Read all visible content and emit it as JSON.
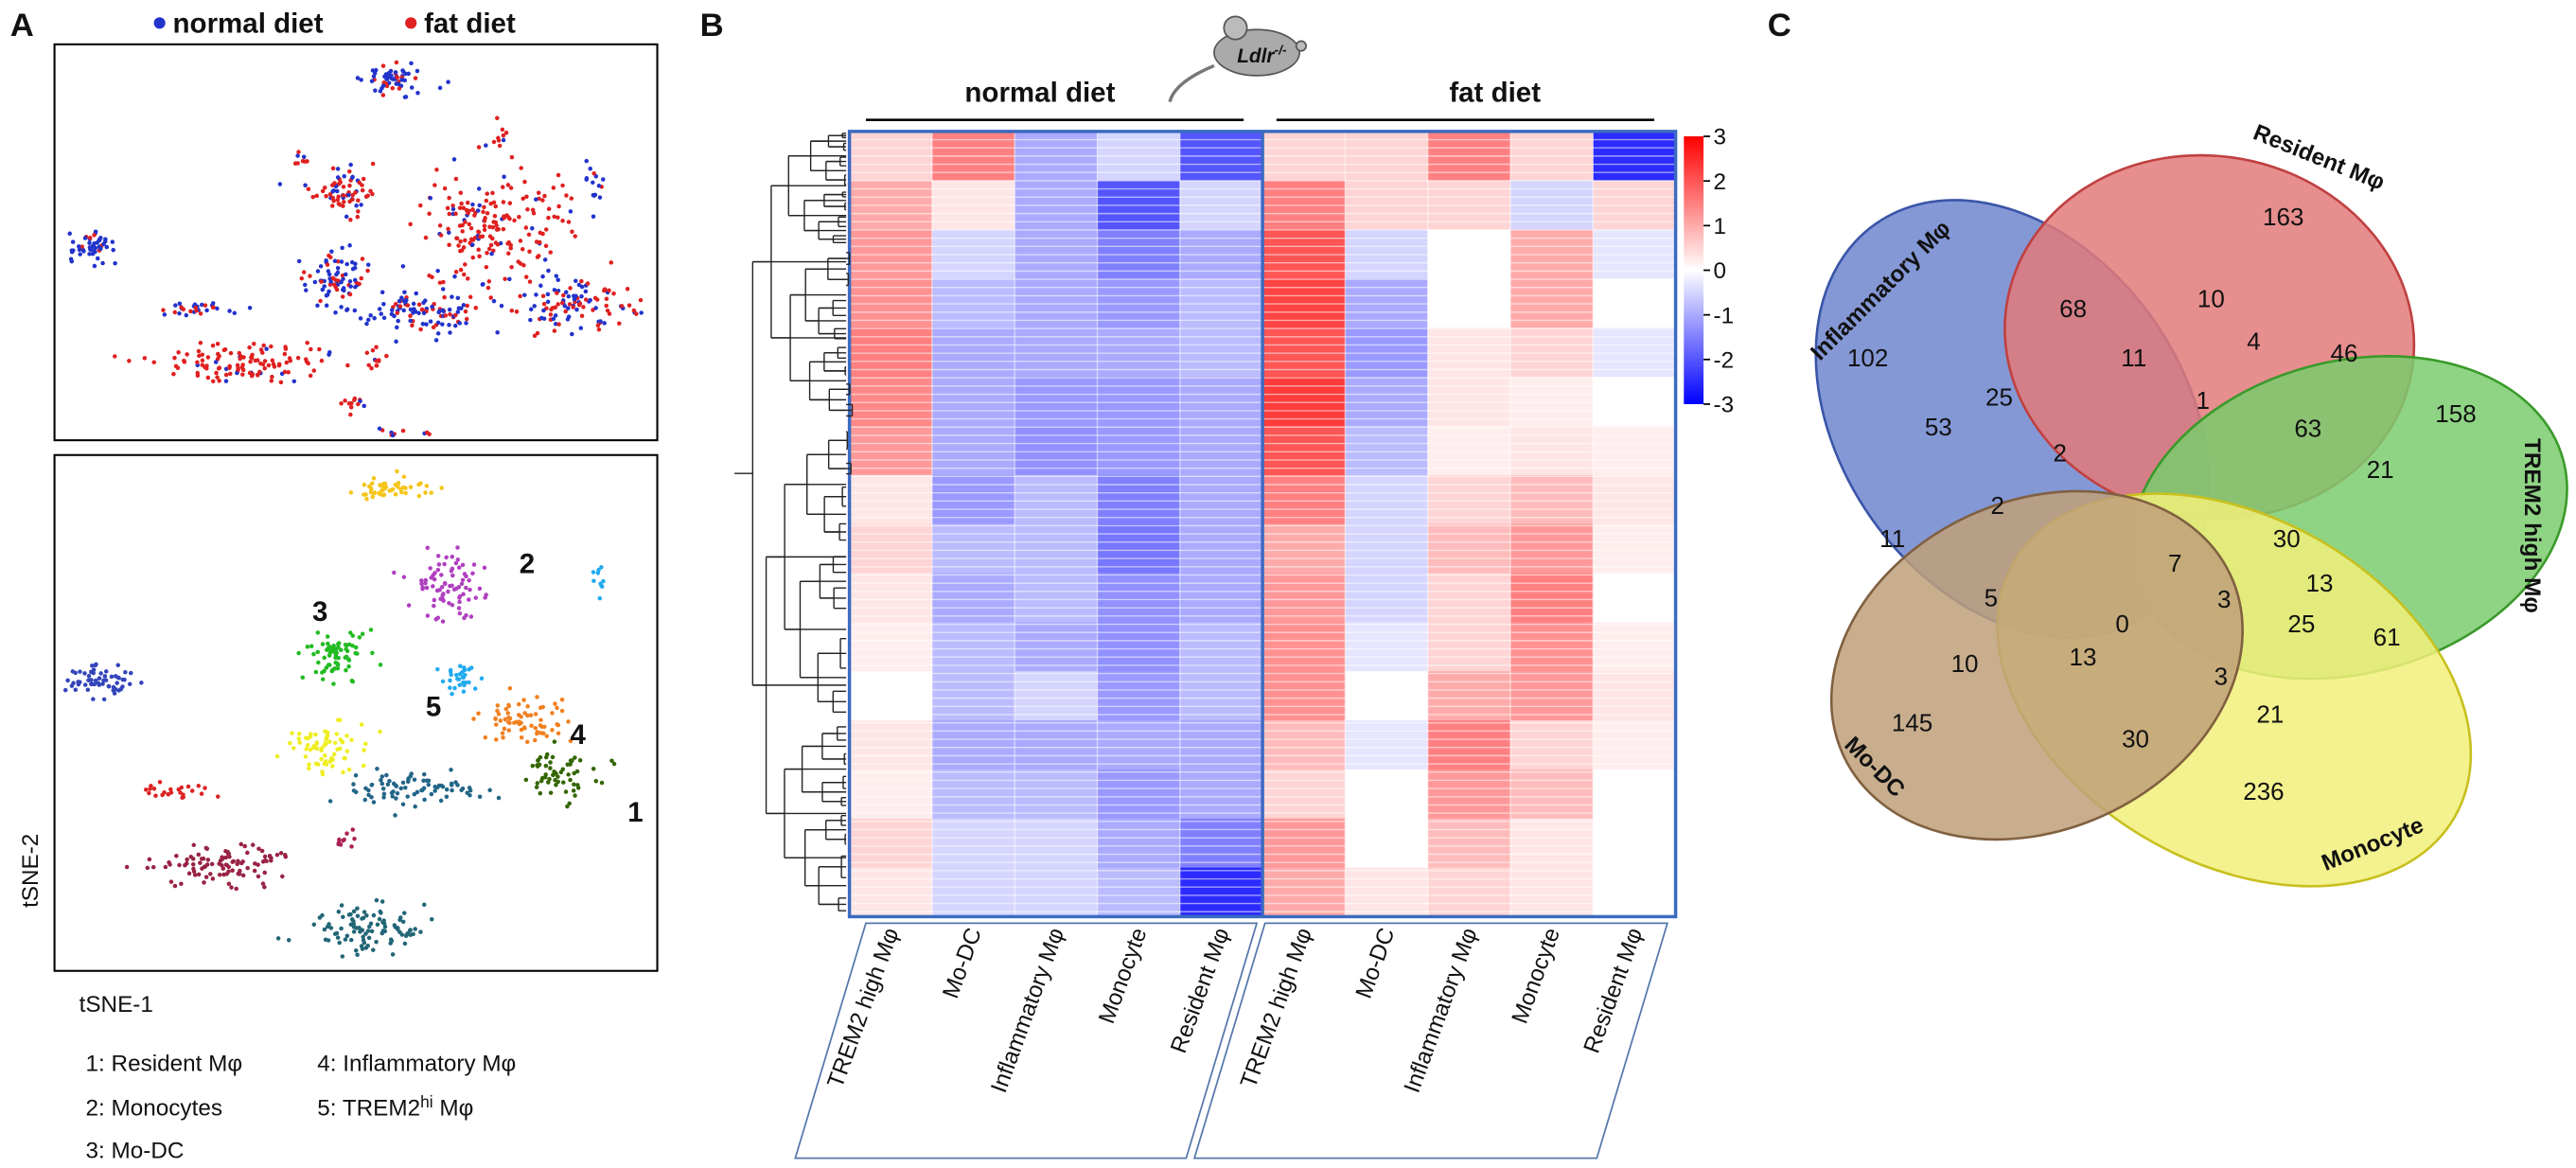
{
  "panels": {
    "A": {
      "label": "A",
      "legend": [
        {
          "name": "normal diet",
          "color": "#2233cc"
        },
        {
          "name": "fat diet",
          "color": "#e02020"
        }
      ],
      "cluster_labels": [
        "1",
        "2",
        "3",
        "4",
        "5"
      ],
      "x_label": "tSNE-1",
      "y_label": "tSNE-2",
      "key": [
        {
          "text": "1: Resident Mφ"
        },
        {
          "text": "2: Monocytes"
        },
        {
          "text": "3: Mo-DC"
        },
        {
          "text": "4: Inflammatory Mφ"
        },
        {
          "prefix": "5: TREM2",
          "sup": "hi",
          "suffix": " Mφ"
        }
      ]
    },
    "B": {
      "label": "B",
      "mouse": {
        "text": "Ldlr",
        "sup": "-/-"
      },
      "groups": [
        "normal diet",
        "fat diet"
      ],
      "heatmap": {
        "columns": [
          "TREM2 high Mφ",
          "Mo-DC",
          "Inflammatory  Mφ",
          "Monocyte",
          "Resident Mφ",
          "TREM2 high Mφ",
          "Mo-DC",
          "Inflammatory  Mφ",
          "Monocyte",
          "Resident Mφ"
        ],
        "rows": [
          [
            0.5,
            1.5,
            -1,
            -0.5,
            -2,
            0.5,
            0.5,
            1.5,
            0.5,
            -2.5
          ],
          [
            1,
            0.3,
            -1,
            -2,
            -0.5,
            1.5,
            0.5,
            0.5,
            -0.5,
            0.5
          ],
          [
            1.2,
            -0.5,
            -1,
            -1.5,
            -1,
            2,
            -0.5,
            0,
            1,
            -0.3
          ],
          [
            1.3,
            -0.8,
            -1,
            -1.2,
            -0.8,
            2.2,
            -1,
            0,
            1,
            0
          ],
          [
            1.5,
            -1,
            -1,
            -1,
            -0.8,
            2,
            -1.2,
            0.3,
            0.5,
            -0.3
          ],
          [
            1.4,
            -1,
            -1.2,
            -1.2,
            -1,
            2.3,
            -1,
            0.3,
            0.2,
            0
          ],
          [
            1.2,
            -1,
            -1.3,
            -1.2,
            -1,
            2,
            -0.8,
            0.2,
            0.3,
            0.2
          ],
          [
            0.3,
            -1.2,
            -0.8,
            -1.5,
            -1,
            1.5,
            -0.5,
            0.5,
            0.8,
            0.3
          ],
          [
            0.5,
            -0.8,
            -0.8,
            -1.6,
            -1,
            1,
            -0.5,
            0.8,
            1.2,
            0.2
          ],
          [
            0.3,
            -1,
            -0.8,
            -1.3,
            -1,
            1.2,
            -0.5,
            0.5,
            1.5,
            0
          ],
          [
            0.2,
            -0.8,
            -1,
            -1.3,
            -0.8,
            1.3,
            -0.3,
            0.5,
            1.3,
            0.2
          ],
          [
            0,
            -0.8,
            -0.5,
            -1.2,
            -0.8,
            1.3,
            0,
            1,
            1.2,
            0.3
          ],
          [
            0.3,
            -1,
            -1,
            -1,
            -1,
            0.8,
            -0.3,
            1.5,
            0.5,
            0.2
          ],
          [
            0.2,
            -0.8,
            -0.8,
            -1.2,
            -1,
            0.5,
            0,
            1.2,
            0.8,
            0
          ],
          [
            0.5,
            -0.5,
            -0.5,
            -1,
            -1.5,
            1.2,
            0,
            0.8,
            0.3,
            0
          ],
          [
            0.3,
            -0.5,
            -0.5,
            -0.8,
            -2.5,
            1,
            0.3,
            0.5,
            0.3,
            0
          ]
        ],
        "clim": [
          -3,
          3
        ],
        "cticks": [
          3,
          2,
          1,
          0,
          -1,
          -2,
          -3
        ],
        "colormap": [
          "#0000ff",
          "#ffffff",
          "#ff0000"
        ]
      }
    },
    "C": {
      "label": "C",
      "sets": [
        "Inflammatory Mφ",
        "Resident Mφ",
        "TREM2 high Mφ",
        "Monocyte",
        "Mo-DC"
      ],
      "counts": [
        "163",
        "68",
        "10",
        "4",
        "46",
        "102",
        "11",
        "25",
        "1",
        "158",
        "53",
        "63",
        "21",
        "2",
        "7",
        "30",
        "13",
        "2",
        "11",
        "0",
        "3",
        "25",
        "5",
        "61",
        "10",
        "13",
        "3",
        "21",
        "145",
        "30",
        "236"
      ]
    }
  }
}
